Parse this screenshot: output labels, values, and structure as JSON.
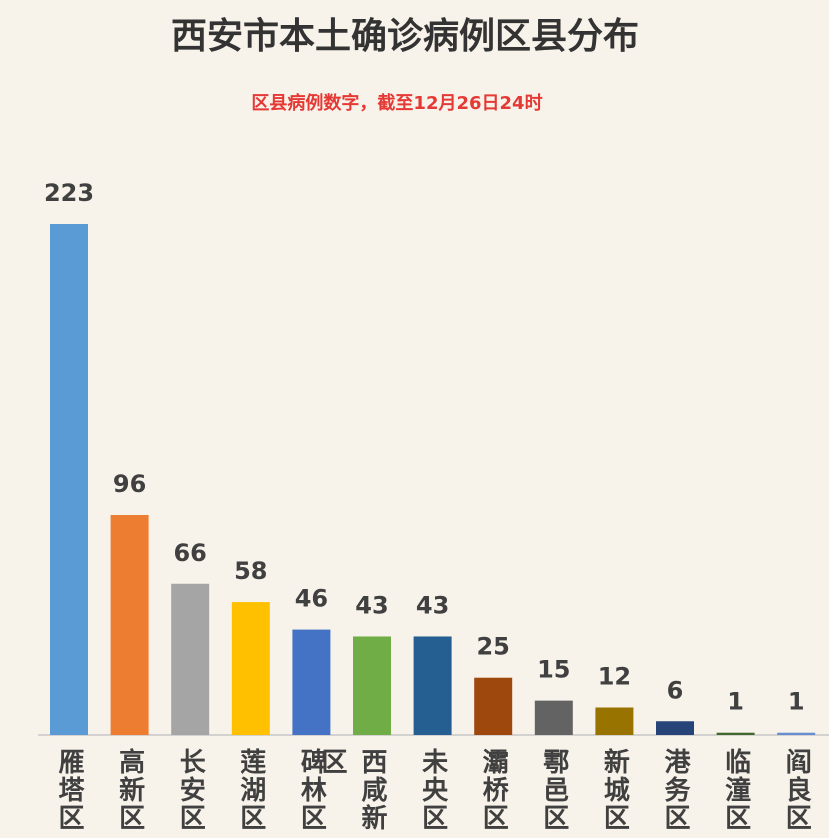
{
  "chart_data": {
    "type": "bar",
    "title": "西安市本土确诊病例区县分布",
    "subtitle": "区县病例数字，截至12月26日24时",
    "categories": [
      "雁塔区",
      "高新区",
      "长安区",
      "莲湖区",
      "碑林区",
      "西咸新区",
      "未央区",
      "灞桥区",
      "鄠邑区",
      "新城区",
      "港务区",
      "临潼区",
      "阎良区"
    ],
    "values": [
      223,
      96,
      66,
      58,
      46,
      43,
      43,
      25,
      15,
      12,
      6,
      1,
      1
    ],
    "colors": [
      "#5b9bd5",
      "#ed7d31",
      "#a5a5a5",
      "#ffc000",
      "#4472c4",
      "#70ad47",
      "#255e91",
      "#9e480e",
      "#636363",
      "#997300",
      "#264478",
      "#43682b",
      "#698ed0"
    ]
  }
}
